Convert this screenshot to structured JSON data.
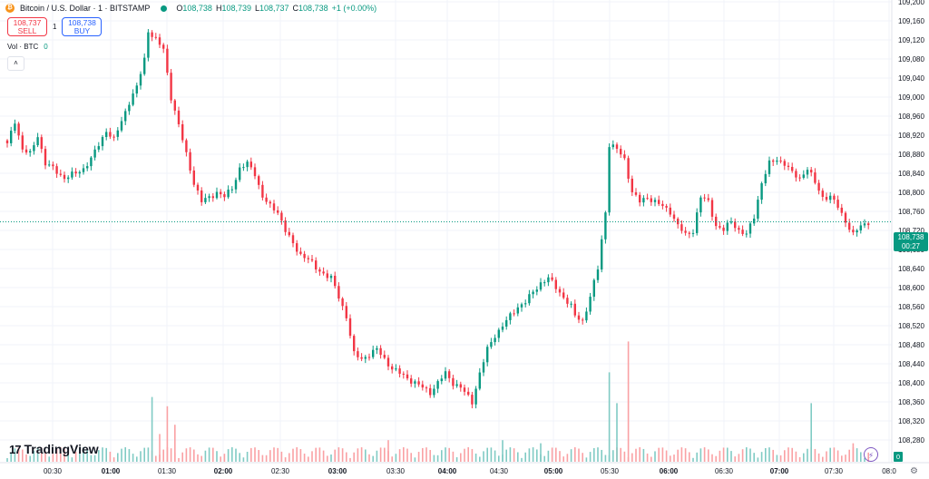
{
  "header": {
    "symbol": "Bitcoin / U.S. Dollar · 1 · BITSTAMP",
    "ohlc": [
      {
        "k": "O",
        "v": "108,738"
      },
      {
        "k": "H",
        "v": "108,739"
      },
      {
        "k": "L",
        "v": "108,737"
      },
      {
        "k": "C",
        "v": "108,738"
      }
    ],
    "change": "+1 (+0.00%)"
  },
  "trade": {
    "sell_price": "108,737",
    "sell_label": "SELL",
    "spread": "1",
    "buy_price": "108,738",
    "buy_label": "BUY"
  },
  "volume": {
    "label": "Vol · BTC",
    "value": "0",
    "tag": "0"
  },
  "collapse": {
    "icon": "chevron-up-icon",
    "glyph": "˄"
  },
  "branding": {
    "mark": "17",
    "name": "TradingView"
  },
  "last_price": {
    "price": "108,738",
    "countdown": "00:27"
  },
  "colors": {
    "up": "#089981",
    "down": "#f23645",
    "up_volume": "#80cbc4",
    "down_volume": "#faa1a4",
    "grid": "#f0f3fa",
    "last_line": "#089981"
  },
  "chart_data": {
    "type": "candlestick",
    "x_ticks": [
      "00:30",
      "01:00",
      "01:30",
      "02:00",
      "02:30",
      "03:00",
      "03:30",
      "04:00",
      "04:30",
      "05:00",
      "05:30",
      "06:00",
      "06:30",
      "07:00",
      "07:30",
      "08:0"
    ],
    "y_ticks": [
      108280,
      108320,
      108360,
      108400,
      108440,
      108480,
      108520,
      108560,
      108600,
      108640,
      108680,
      108720,
      108760,
      108800,
      108840,
      108880,
      108920,
      108960,
      109000,
      109040,
      109080,
      109120,
      109160,
      109200
    ],
    "y_tick_labels": [
      "108,280",
      "108,320",
      "108,360",
      "108,400",
      "108,440",
      "108,480",
      "108,520",
      "108,560",
      "108,600",
      "108,640",
      "108,680",
      "108,720",
      "108,760",
      "108,800",
      "108,840",
      "108,880",
      "108,920",
      "108,960",
      "109,000",
      "109,040",
      "109,080",
      "109,120",
      "109,160",
      "109,200"
    ],
    "ylim": [
      108270,
      109230
    ],
    "last_price": 108738,
    "legend": "none",
    "grid": true,
    "close_path": [
      [
        0,
        108900
      ],
      [
        2,
        108950
      ],
      [
        4,
        108890
      ],
      [
        6,
        108880
      ],
      [
        8,
        108920
      ],
      [
        10,
        108860
      ],
      [
        12,
        108850
      ],
      [
        15,
        108830
      ],
      [
        18,
        108840
      ],
      [
        20,
        108850
      ],
      [
        22,
        108870
      ],
      [
        24,
        108900
      ],
      [
        26,
        108930
      ],
      [
        28,
        108910
      ],
      [
        30,
        108950
      ],
      [
        32,
        108990
      ],
      [
        34,
        109020
      ],
      [
        36,
        109080
      ],
      [
        37,
        109140
      ],
      [
        39,
        109120
      ],
      [
        41,
        109100
      ],
      [
        43,
        109000
      ],
      [
        45,
        108940
      ],
      [
        47,
        108880
      ],
      [
        49,
        108820
      ],
      [
        51,
        108780
      ],
      [
        53,
        108790
      ],
      [
        55,
        108800
      ],
      [
        57,
        108790
      ],
      [
        59,
        108810
      ],
      [
        61,
        108850
      ],
      [
        63,
        108860
      ],
      [
        65,
        108840
      ],
      [
        67,
        108790
      ],
      [
        69,
        108770
      ],
      [
        71,
        108760
      ],
      [
        73,
        108720
      ],
      [
        75,
        108690
      ],
      [
        77,
        108670
      ],
      [
        79,
        108660
      ],
      [
        81,
        108640
      ],
      [
        83,
        108630
      ],
      [
        85,
        108620
      ],
      [
        87,
        108580
      ],
      [
        89,
        108540
      ],
      [
        91,
        108460
      ],
      [
        93,
        108450
      ],
      [
        95,
        108460
      ],
      [
        97,
        108470
      ],
      [
        99,
        108450
      ],
      [
        101,
        108430
      ],
      [
        103,
        108420
      ],
      [
        105,
        108410
      ],
      [
        107,
        108400
      ],
      [
        109,
        108390
      ],
      [
        111,
        108380
      ],
      [
        113,
        108400
      ],
      [
        115,
        108420
      ],
      [
        117,
        108400
      ],
      [
        119,
        108390
      ],
      [
        121,
        108370
      ],
      [
        122,
        108360
      ],
      [
        124,
        108420
      ],
      [
        126,
        108470
      ],
      [
        128,
        108500
      ],
      [
        130,
        108520
      ],
      [
        132,
        108540
      ],
      [
        134,
        108560
      ],
      [
        136,
        108570
      ],
      [
        138,
        108590
      ],
      [
        140,
        108610
      ],
      [
        142,
        108620
      ],
      [
        144,
        108600
      ],
      [
        146,
        108580
      ],
      [
        148,
        108560
      ],
      [
        149,
        108540
      ],
      [
        151,
        108530
      ],
      [
        153,
        108580
      ],
      [
        155,
        108640
      ],
      [
        157,
        108760
      ],
      [
        158,
        108900
      ],
      [
        160,
        108890
      ],
      [
        162,
        108870
      ],
      [
        164,
        108800
      ],
      [
        166,
        108780
      ],
      [
        168,
        108790
      ],
      [
        170,
        108780
      ],
      [
        172,
        108770
      ],
      [
        174,
        108760
      ],
      [
        176,
        108730
      ],
      [
        178,
        108710
      ],
      [
        180,
        108720
      ],
      [
        182,
        108790
      ],
      [
        184,
        108780
      ],
      [
        186,
        108730
      ],
      [
        188,
        108720
      ],
      [
        190,
        108740
      ],
      [
        192,
        108720
      ],
      [
        194,
        108710
      ],
      [
        196,
        108750
      ],
      [
        198,
        108820
      ],
      [
        200,
        108860
      ],
      [
        202,
        108870
      ],
      [
        204,
        108860
      ],
      [
        206,
        108840
      ],
      [
        208,
        108830
      ],
      [
        210,
        108850
      ],
      [
        212,
        108820
      ],
      [
        214,
        108790
      ],
      [
        216,
        108790
      ],
      [
        218,
        108770
      ],
      [
        220,
        108740
      ],
      [
        222,
        108710
      ],
      [
        224,
        108730
      ],
      [
        226,
        108738
      ]
    ],
    "volume_bars": [
      {
        "i": 38,
        "v": 0.42,
        "dir": "up"
      },
      {
        "i": 42,
        "v": 0.36,
        "dir": "down"
      },
      {
        "i": 44,
        "v": 0.24,
        "dir": "down"
      },
      {
        "i": 40,
        "v": 0.18,
        "dir": "down"
      },
      {
        "i": 100,
        "v": 0.14,
        "dir": "down"
      },
      {
        "i": 130,
        "v": 0.14,
        "dir": "up"
      },
      {
        "i": 140,
        "v": 0.12,
        "dir": "up"
      },
      {
        "i": 158,
        "v": 0.58,
        "dir": "up"
      },
      {
        "i": 160,
        "v": 0.38,
        "dir": "up"
      },
      {
        "i": 163,
        "v": 0.78,
        "dir": "down"
      },
      {
        "i": 211,
        "v": 0.38,
        "dir": "up"
      },
      {
        "i": 222,
        "v": 0.12,
        "dir": "down"
      }
    ]
  }
}
